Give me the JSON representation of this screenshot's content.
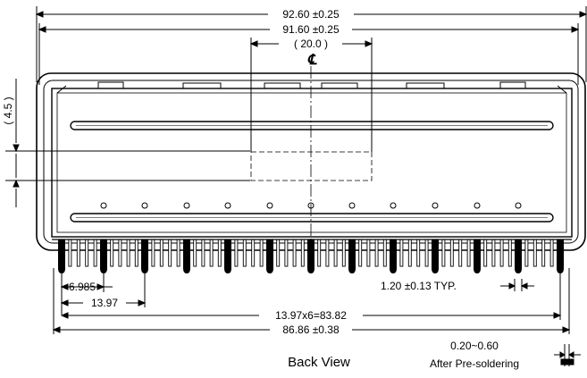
{
  "dimensions": {
    "overall_width": "92.60 ±0.25",
    "inner_width": "91.60 ±0.25",
    "center_gap": "( 20.0 )",
    "side_height": "( 4.5 )",
    "pin_pitch_first": "6.985",
    "pin_pitch": "13.97",
    "pitch_total": "13.97x6=83.82",
    "pin_span": "86.86 ±0.38",
    "pin_width": "1.20 ±0.13 TYP.",
    "solder_height": "0.20~0.60"
  },
  "centerline_symbol": "℄",
  "caption": {
    "view": "Back View",
    "note": "After Pre-soldering"
  }
}
